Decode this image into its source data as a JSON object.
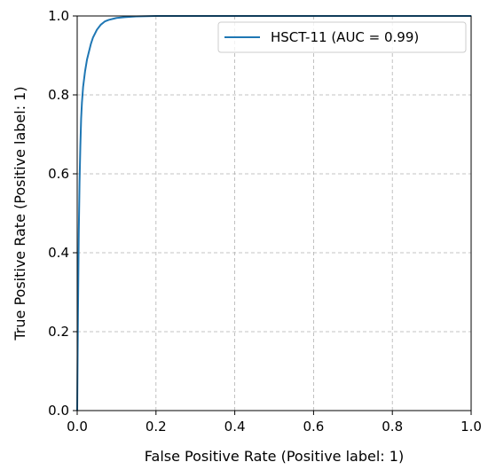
{
  "chart_data": {
    "type": "line",
    "xlabel": "False Positive Rate (Positive label: 1)",
    "ylabel": "True Positive Rate (Positive label: 1)",
    "xlim": [
      0.0,
      1.0
    ],
    "ylim": [
      0.0,
      1.0
    ],
    "xticks": [
      "0.0",
      "0.2",
      "0.4",
      "0.6",
      "0.8",
      "1.0"
    ],
    "yticks": [
      "0.0",
      "0.2",
      "0.4",
      "0.6",
      "0.8",
      "1.0"
    ],
    "grid": true,
    "legend_position": "top-right",
    "series": [
      {
        "name": "HSCT-11 (AUC = 0.99)",
        "color": "#1f77b4",
        "x": [
          0.0,
          0.002,
          0.004,
          0.006,
          0.008,
          0.01,
          0.012,
          0.015,
          0.02,
          0.025,
          0.03,
          0.035,
          0.04,
          0.05,
          0.06,
          0.07,
          0.08,
          0.1,
          0.12,
          0.15,
          0.2,
          0.3,
          0.5,
          0.7,
          1.0
        ],
        "y": [
          0.0,
          0.25,
          0.45,
          0.58,
          0.67,
          0.74,
          0.78,
          0.82,
          0.86,
          0.89,
          0.91,
          0.93,
          0.945,
          0.965,
          0.978,
          0.986,
          0.99,
          0.995,
          0.997,
          0.999,
          1.0,
          1.0,
          1.0,
          1.0,
          1.0
        ]
      }
    ]
  }
}
